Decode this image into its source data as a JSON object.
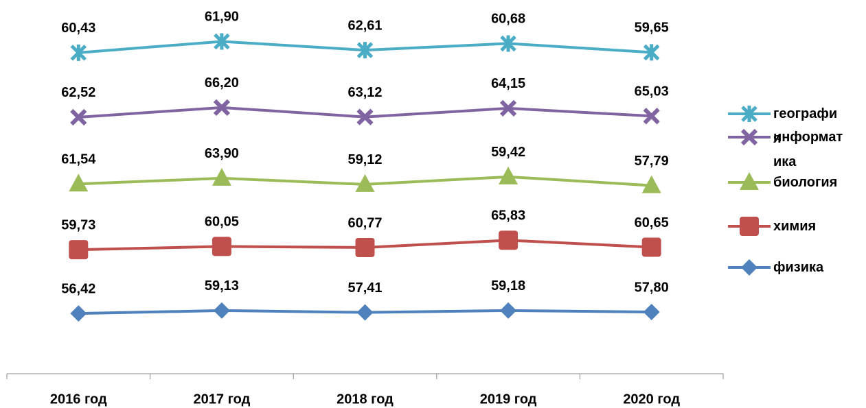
{
  "chart_data": {
    "type": "line",
    "stacked": true,
    "categories": [
      "2016 год",
      "2017 год",
      "2018 год",
      "2019 год",
      "2020 год"
    ],
    "ylim": [
      0,
      350
    ],
    "legend": "right",
    "series": [
      {
        "name": "физика",
        "color": "#4f81bd",
        "marker": "diamond",
        "values": [
          56.42,
          59.13,
          57.41,
          59.18,
          57.8
        ],
        "value_labels": [
          "56,42",
          "59,13",
          "57,41",
          "59,18",
          "57,80"
        ]
      },
      {
        "name": "химия",
        "color": "#c0504d",
        "marker": "square",
        "values": [
          59.73,
          60.05,
          60.77,
          65.83,
          60.65
        ],
        "value_labels": [
          "59,73",
          "60,05",
          "60,77",
          "65,83",
          "60,65"
        ]
      },
      {
        "name": "биология",
        "color": "#9bbb59",
        "marker": "triangle",
        "values": [
          61.54,
          63.9,
          59.12,
          59.42,
          57.79
        ],
        "value_labels": [
          "61,54",
          "63,90",
          "59,12",
          "59,42",
          "57,79"
        ]
      },
      {
        "name": "информатика",
        "color": "#8064a2",
        "marker": "x",
        "values": [
          62.52,
          66.2,
          63.12,
          64.15,
          65.03
        ],
        "value_labels": [
          "62,52",
          "66,20",
          "63,12",
          "64,15",
          "65,03"
        ]
      },
      {
        "name": "география",
        "color": "#4bacc6",
        "marker": "star",
        "values": [
          60.43,
          61.9,
          62.61,
          60.68,
          59.65
        ],
        "value_labels": [
          "60,43",
          "61,90",
          "62,61",
          "60,68",
          "59,65"
        ]
      }
    ]
  }
}
